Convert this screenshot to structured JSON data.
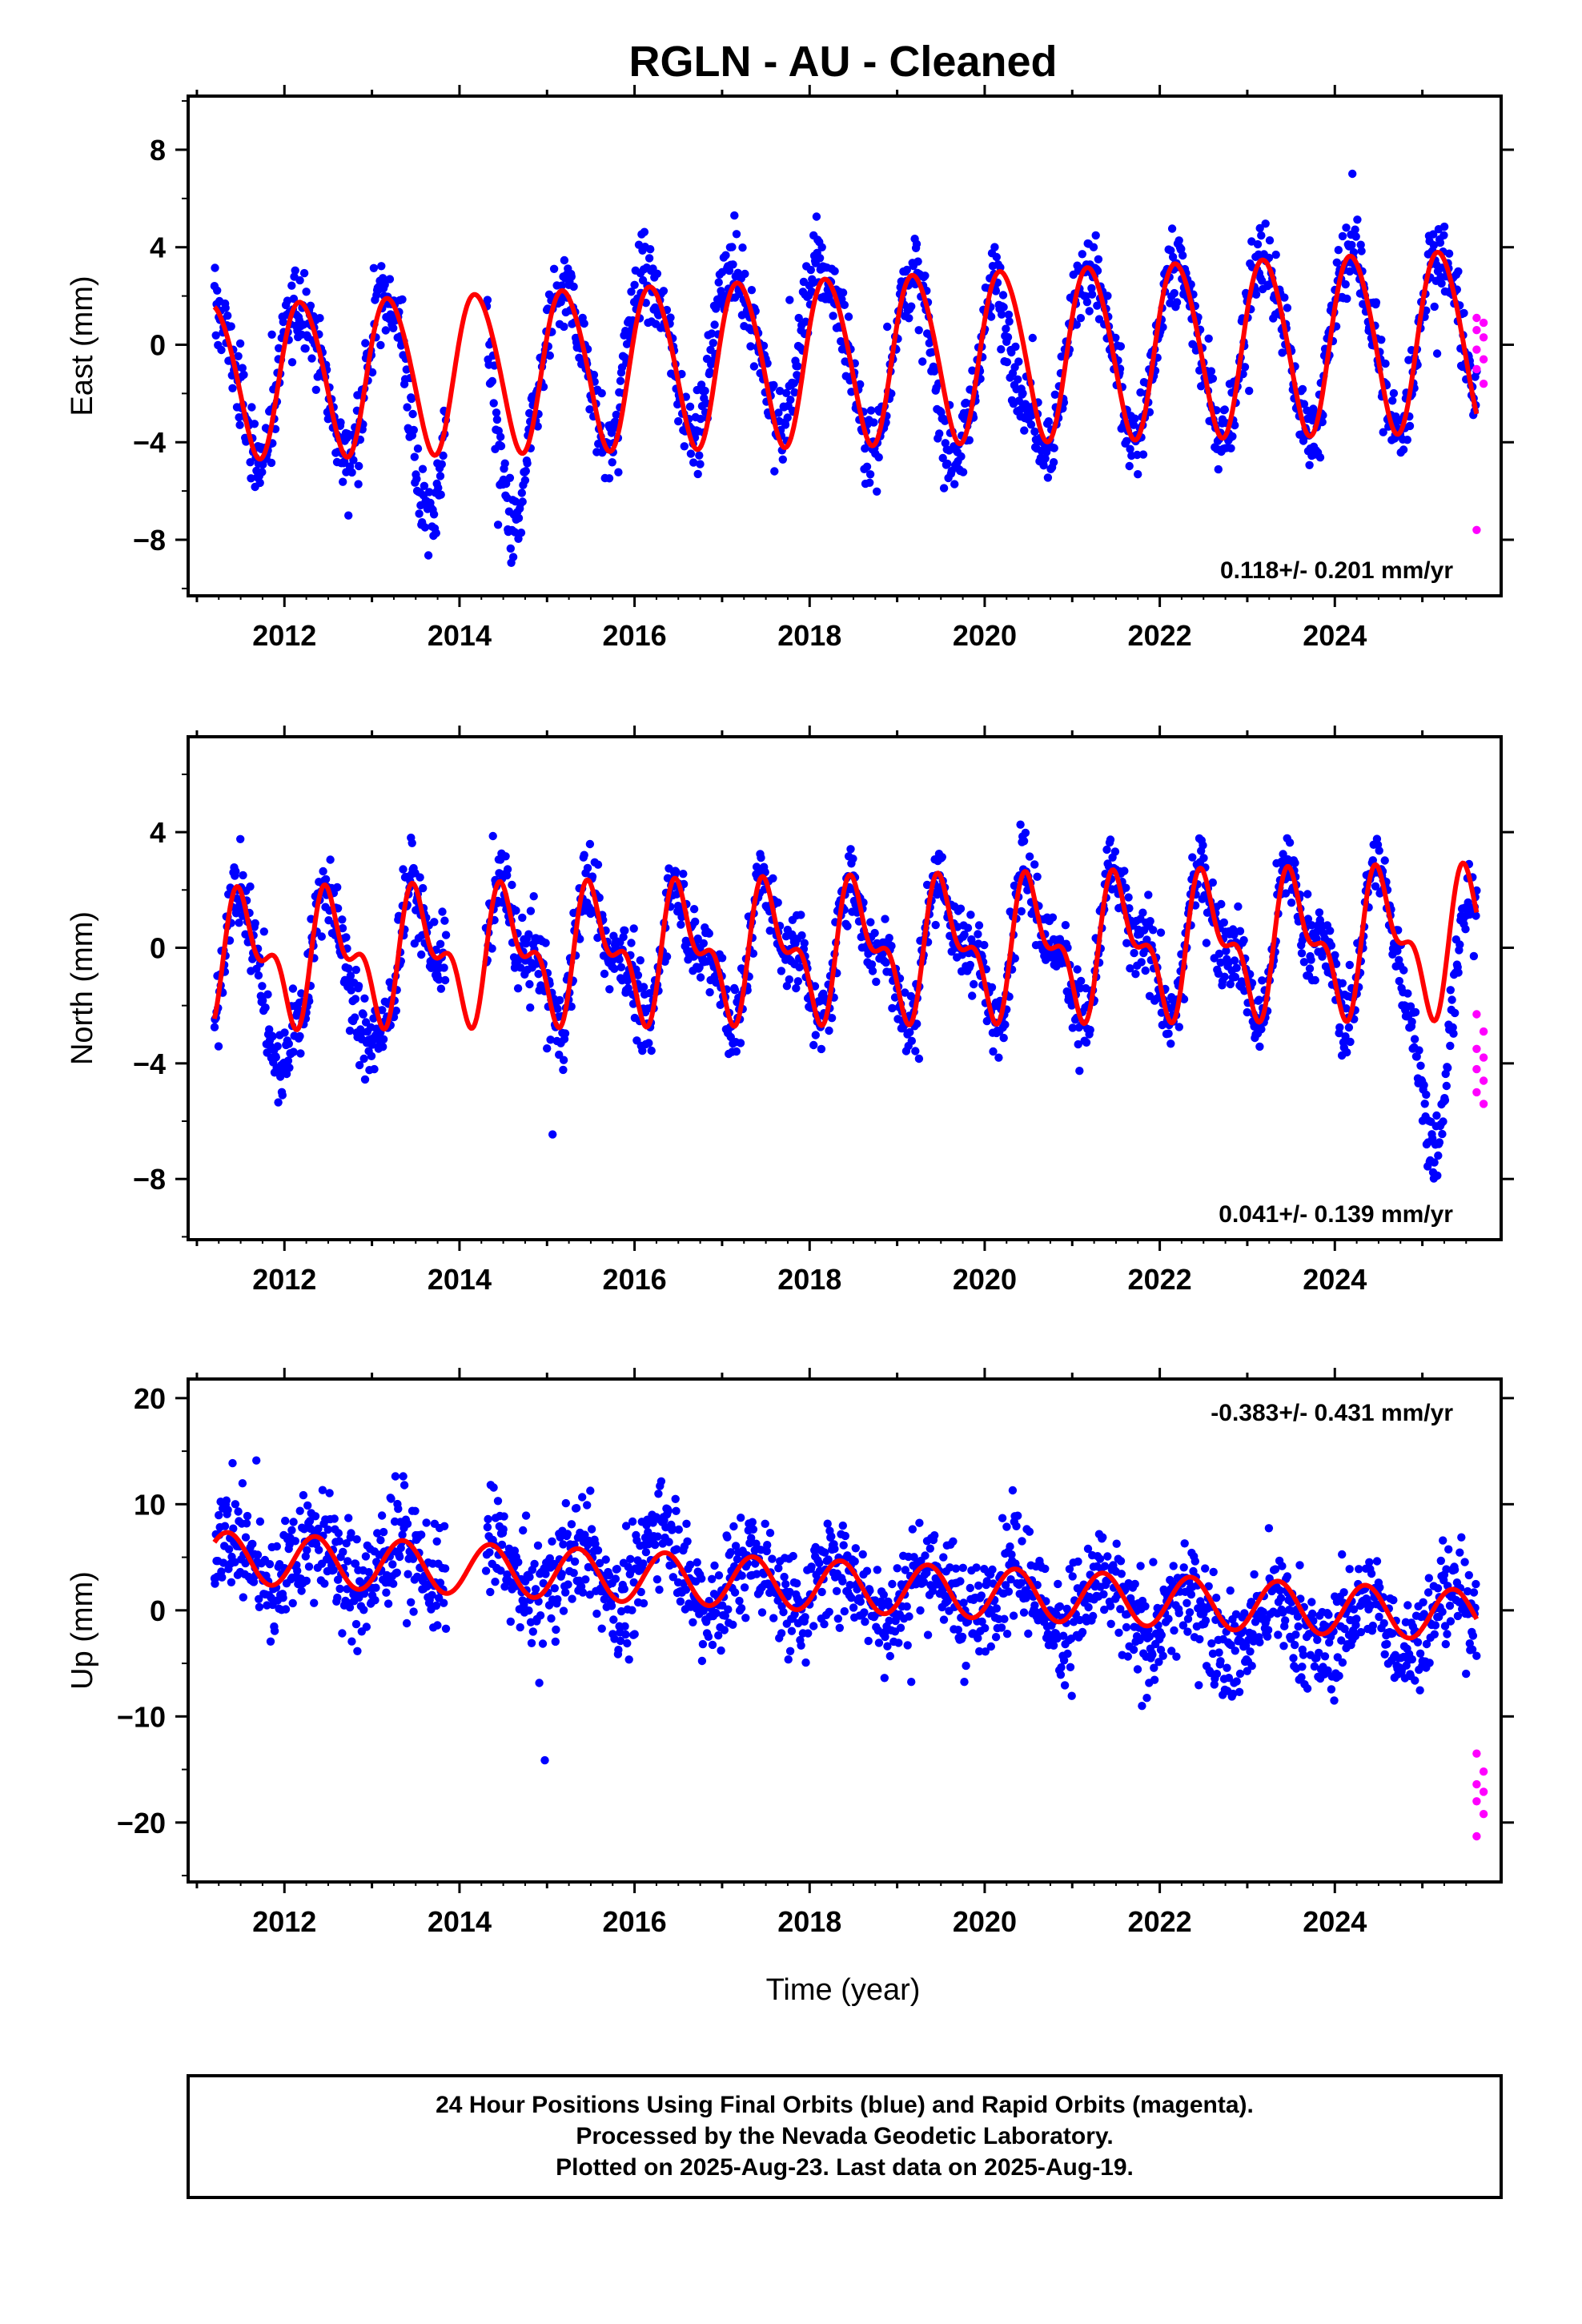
{
  "title": "RGLN  - AU - Cleaned",
  "xlabel": "Time (year)",
  "footer": {
    "line1": "24 Hour Positions Using Final Orbits (blue) and Rapid Orbits (magenta).",
    "line2": "Processed by the Nevada Geodetic Laboratory.",
    "line3": "Plotted on 2025-Aug-23. Last data on 2025-Aug-19."
  },
  "colors": {
    "final": "#0000ff",
    "rapid": "#ff00ff",
    "model": "#ff0000",
    "frame": "#000000"
  },
  "chart_data": [
    {
      "type": "scatter",
      "component": "East",
      "ylabel": "East (mm)",
      "rate_text": "0.118+/- 0.201 mm/yr",
      "xlim": [
        2010.9,
        2025.9
      ],
      "ylim": [
        -10.3,
        10.2
      ],
      "xticks": [
        2012,
        2014,
        2016,
        2018,
        2020,
        2022,
        2024
      ],
      "yticks": [
        8,
        4,
        0,
        -4,
        -8
      ],
      "x_start": 2011.2,
      "x_end": 2025.62,
      "gap": [
        2013.85,
        2014.3
      ],
      "model": {
        "offset": -0.6,
        "trend": 0.118,
        "annual_amp": 3.4,
        "annual_amp_slope": 0.04,
        "annual_phase": 0.95,
        "semi_amp": 0.3,
        "semi_phase": 0.4
      },
      "anomalies": [
        {
          "x0": 2013.3,
          "x1": 2013.85,
          "dy": -3.2
        },
        {
          "x0": 2014.3,
          "x1": 2014.8,
          "dy": -4.0
        },
        {
          "x0": 2015.7,
          "x1": 2016.2,
          "dy": 1.6
        },
        {
          "x0": 2016.6,
          "x1": 2017.2,
          "dy": 1.8
        },
        {
          "x0": 2017.6,
          "x1": 2018.2,
          "dy": 2.0
        },
        {
          "x0": 2019.3,
          "x1": 2019.7,
          "dy": -2.0
        },
        {
          "x0": 2020.1,
          "x1": 2020.6,
          "dy": -2.5
        }
      ],
      "noise": 1.15,
      "rapid_values": [
        1.1,
        0.9,
        0.6,
        0.3,
        -0.2,
        -0.6,
        -1.0,
        -1.6,
        -7.6
      ],
      "rapid_x": [
        2025.62,
        2025.7
      ]
    },
    {
      "type": "scatter",
      "component": "North",
      "ylabel": "North (mm)",
      "rate_text": "0.041+/- 0.139 mm/yr",
      "xlim": [
        2010.9,
        2025.9
      ],
      "ylim": [
        -10.1,
        7.3
      ],
      "xticks": [
        2012,
        2014,
        2016,
        2018,
        2020,
        2022,
        2024
      ],
      "yticks": [
        4,
        0,
        -4,
        -8
      ],
      "x_start": 2011.2,
      "x_end": 2025.62,
      "gap": [
        2013.85,
        2014.3
      ],
      "model": {
        "offset": -0.1,
        "trend": 0.041,
        "annual_amp": 1.9,
        "annual_amp_slope": 0.02,
        "annual_phase": 0.3,
        "semi_amp": 1.1,
        "semi_phase": 0.3
      },
      "anomalies": [
        {
          "x0": 2011.7,
          "x1": 2012.1,
          "dy": -3.5
        },
        {
          "x0": 2012.7,
          "x1": 2013.1,
          "dy": -2.6
        },
        {
          "x0": 2024.7,
          "x1": 2025.6,
          "dy": -4.5
        }
      ],
      "noise": 0.95,
      "rapid_values": [
        -2.3,
        -2.9,
        -3.5,
        -3.8,
        -4.2,
        -4.6,
        -5.0,
        -5.4
      ],
      "rapid_x": [
        2025.62,
        2025.7
      ]
    },
    {
      "type": "scatter",
      "component": "Up",
      "ylabel": "Up (mm)",
      "rate_text": "-0.383+/- 0.431 mm/yr",
      "xlim": [
        2010.9,
        2025.9
      ],
      "ylim": [
        -25.6,
        21.8
      ],
      "xticks": [
        2012,
        2014,
        2016,
        2018,
        2020,
        2022,
        2024
      ],
      "yticks": [
        20,
        10,
        0,
        -10,
        -20
      ],
      "x_start": 2011.2,
      "x_end": 2025.62,
      "gap": [
        2013.85,
        2014.3
      ],
      "model": {
        "offset": 2.4,
        "trend": -0.383,
        "annual_amp": 2.4,
        "annual_amp_slope": 0.0,
        "annual_phase": 0.1,
        "semi_amp": 0.0,
        "semi_phase": 0.0
      },
      "anomalies": [
        {
          "x0": 2016.0,
          "x1": 2016.6,
          "dy": 3.5
        },
        {
          "x0": 2020.5,
          "x1": 2025.6,
          "dy": -1.8
        }
      ],
      "noise": 3.6,
      "rapid_values": [
        -13.5,
        -15.2,
        -16.4,
        -17.1,
        -18.0,
        -19.2,
        -21.3
      ],
      "rapid_x": [
        2025.62,
        2025.7
      ]
    }
  ]
}
